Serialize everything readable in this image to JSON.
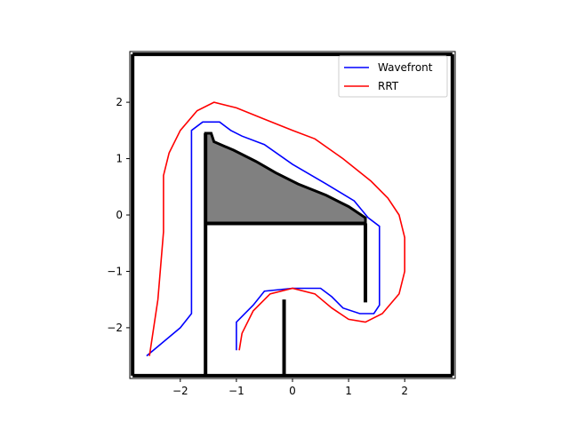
{
  "chart_data": {
    "type": "line",
    "xlim": [
      -2.9,
      2.9
    ],
    "ylim": [
      -2.9,
      2.9
    ],
    "x_ticks": [
      -2,
      -1,
      0,
      1,
      2
    ],
    "y_ticks": [
      -2,
      -1,
      0,
      1,
      2
    ],
    "x_tick_labels": [
      "−2",
      "−1",
      "0",
      "1",
      "2"
    ],
    "y_tick_labels": [
      "−2",
      "−1",
      "0",
      "1",
      "2"
    ],
    "grid": false,
    "legend_position": "top-right",
    "series": [
      {
        "name": "Wavefront",
        "color": "#0000ff",
        "points": [
          [
            -2.6,
            -2.5
          ],
          [
            -2.0,
            -2.0
          ],
          [
            -1.8,
            -1.75
          ],
          [
            -1.8,
            1.5
          ],
          [
            -1.6,
            1.65
          ],
          [
            -1.3,
            1.65
          ],
          [
            -1.1,
            1.5
          ],
          [
            -0.9,
            1.4
          ],
          [
            -0.5,
            1.25
          ],
          [
            0.0,
            0.9
          ],
          [
            0.6,
            0.55
          ],
          [
            1.1,
            0.25
          ],
          [
            1.35,
            -0.05
          ],
          [
            1.55,
            -0.2
          ],
          [
            1.55,
            -1.6
          ],
          [
            1.45,
            -1.75
          ],
          [
            1.2,
            -1.75
          ],
          [
            0.9,
            -1.65
          ],
          [
            0.7,
            -1.45
          ],
          [
            0.5,
            -1.3
          ],
          [
            0.0,
            -1.3
          ],
          [
            -0.5,
            -1.35
          ],
          [
            -0.7,
            -1.6
          ],
          [
            -1.0,
            -1.9
          ],
          [
            -1.0,
            -2.4
          ]
        ]
      },
      {
        "name": "RRT",
        "color": "#ff0000",
        "points": [
          [
            -2.55,
            -2.5
          ],
          [
            -2.4,
            -1.5
          ],
          [
            -2.3,
            -0.3
          ],
          [
            -2.3,
            0.7
          ],
          [
            -2.2,
            1.1
          ],
          [
            -2.0,
            1.5
          ],
          [
            -1.7,
            1.85
          ],
          [
            -1.4,
            2.0
          ],
          [
            -1.0,
            1.9
          ],
          [
            -0.5,
            1.7
          ],
          [
            0.0,
            1.5
          ],
          [
            0.4,
            1.35
          ],
          [
            0.9,
            1.0
          ],
          [
            1.4,
            0.6
          ],
          [
            1.7,
            0.3
          ],
          [
            1.9,
            0.0
          ],
          [
            2.0,
            -0.4
          ],
          [
            2.0,
            -1.0
          ],
          [
            1.9,
            -1.4
          ],
          [
            1.6,
            -1.75
          ],
          [
            1.3,
            -1.9
          ],
          [
            1.0,
            -1.85
          ],
          [
            0.7,
            -1.65
          ],
          [
            0.4,
            -1.4
          ],
          [
            0.0,
            -1.3
          ],
          [
            -0.4,
            -1.4
          ],
          [
            -0.7,
            -1.7
          ],
          [
            -0.9,
            -2.1
          ],
          [
            -0.95,
            -2.4
          ]
        ]
      }
    ],
    "obstacles": {
      "gray_region": [
        [
          -1.55,
          1.45
        ],
        [
          -1.45,
          1.45
        ],
        [
          -1.4,
          1.3
        ],
        [
          -1.05,
          1.15
        ],
        [
          -0.65,
          0.95
        ],
        [
          -0.3,
          0.75
        ],
        [
          0.1,
          0.55
        ],
        [
          0.6,
          0.35
        ],
        [
          1.0,
          0.15
        ],
        [
          1.3,
          -0.05
        ],
        [
          1.3,
          -0.15
        ],
        [
          -1.55,
          -0.15
        ]
      ],
      "walls": [
        [
          [
            -1.55,
            1.45
          ],
          [
            -1.55,
            -2.85
          ]
        ],
        [
          [
            -1.55,
            -0.15
          ],
          [
            1.3,
            -0.15
          ]
        ],
        [
          [
            1.3,
            -0.15
          ],
          [
            1.3,
            -1.55
          ]
        ],
        [
          [
            -0.15,
            -1.5
          ],
          [
            -0.15,
            -2.85
          ]
        ],
        [
          [
            -2.85,
            2.85
          ],
          [
            2.85,
            2.85
          ]
        ],
        [
          [
            -2.85,
            -2.85
          ],
          [
            2.85,
            -2.85
          ]
        ],
        [
          [
            -2.85,
            2.85
          ],
          [
            -2.85,
            -2.85
          ]
        ],
        [
          [
            2.85,
            2.85
          ],
          [
            2.85,
            -2.85
          ]
        ]
      ]
    }
  }
}
